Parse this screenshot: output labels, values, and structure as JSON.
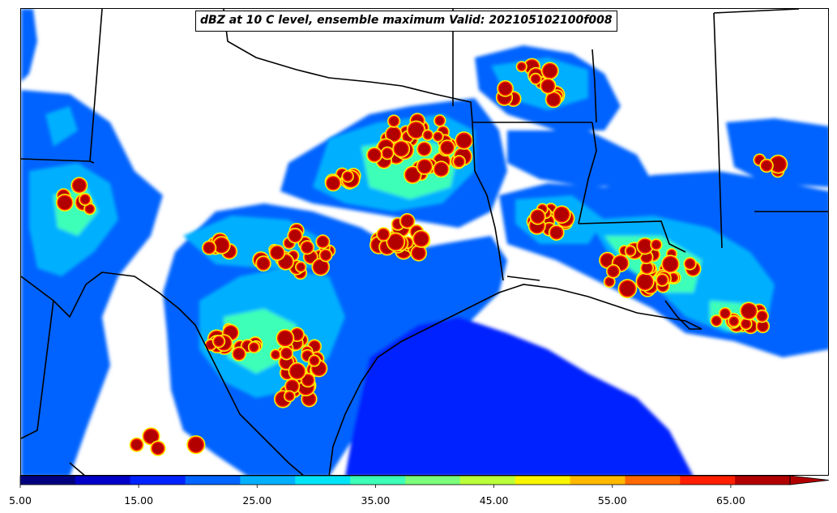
{
  "title": "dBZ at 10 C level, ensemble maximum Valid: 202105102100f008",
  "colorbar": {
    "min": 5,
    "max": 70,
    "step": 5,
    "extend": "max",
    "tick_labels": [
      "5.00",
      "15.00",
      "25.00",
      "35.00",
      "45.00",
      "55.00",
      "65.00"
    ],
    "colors": [
      "#00007f",
      "#0000c8",
      "#0022ff",
      "#0064ff",
      "#00b0ff",
      "#00e4f8",
      "#3cffb8",
      "#7cff7a",
      "#baff3a",
      "#f8f500",
      "#ffb800",
      "#ff6a00",
      "#ff1e00",
      "#b20000"
    ]
  },
  "map": {
    "background": "#ffffff",
    "boundary_color": "#000000"
  }
}
